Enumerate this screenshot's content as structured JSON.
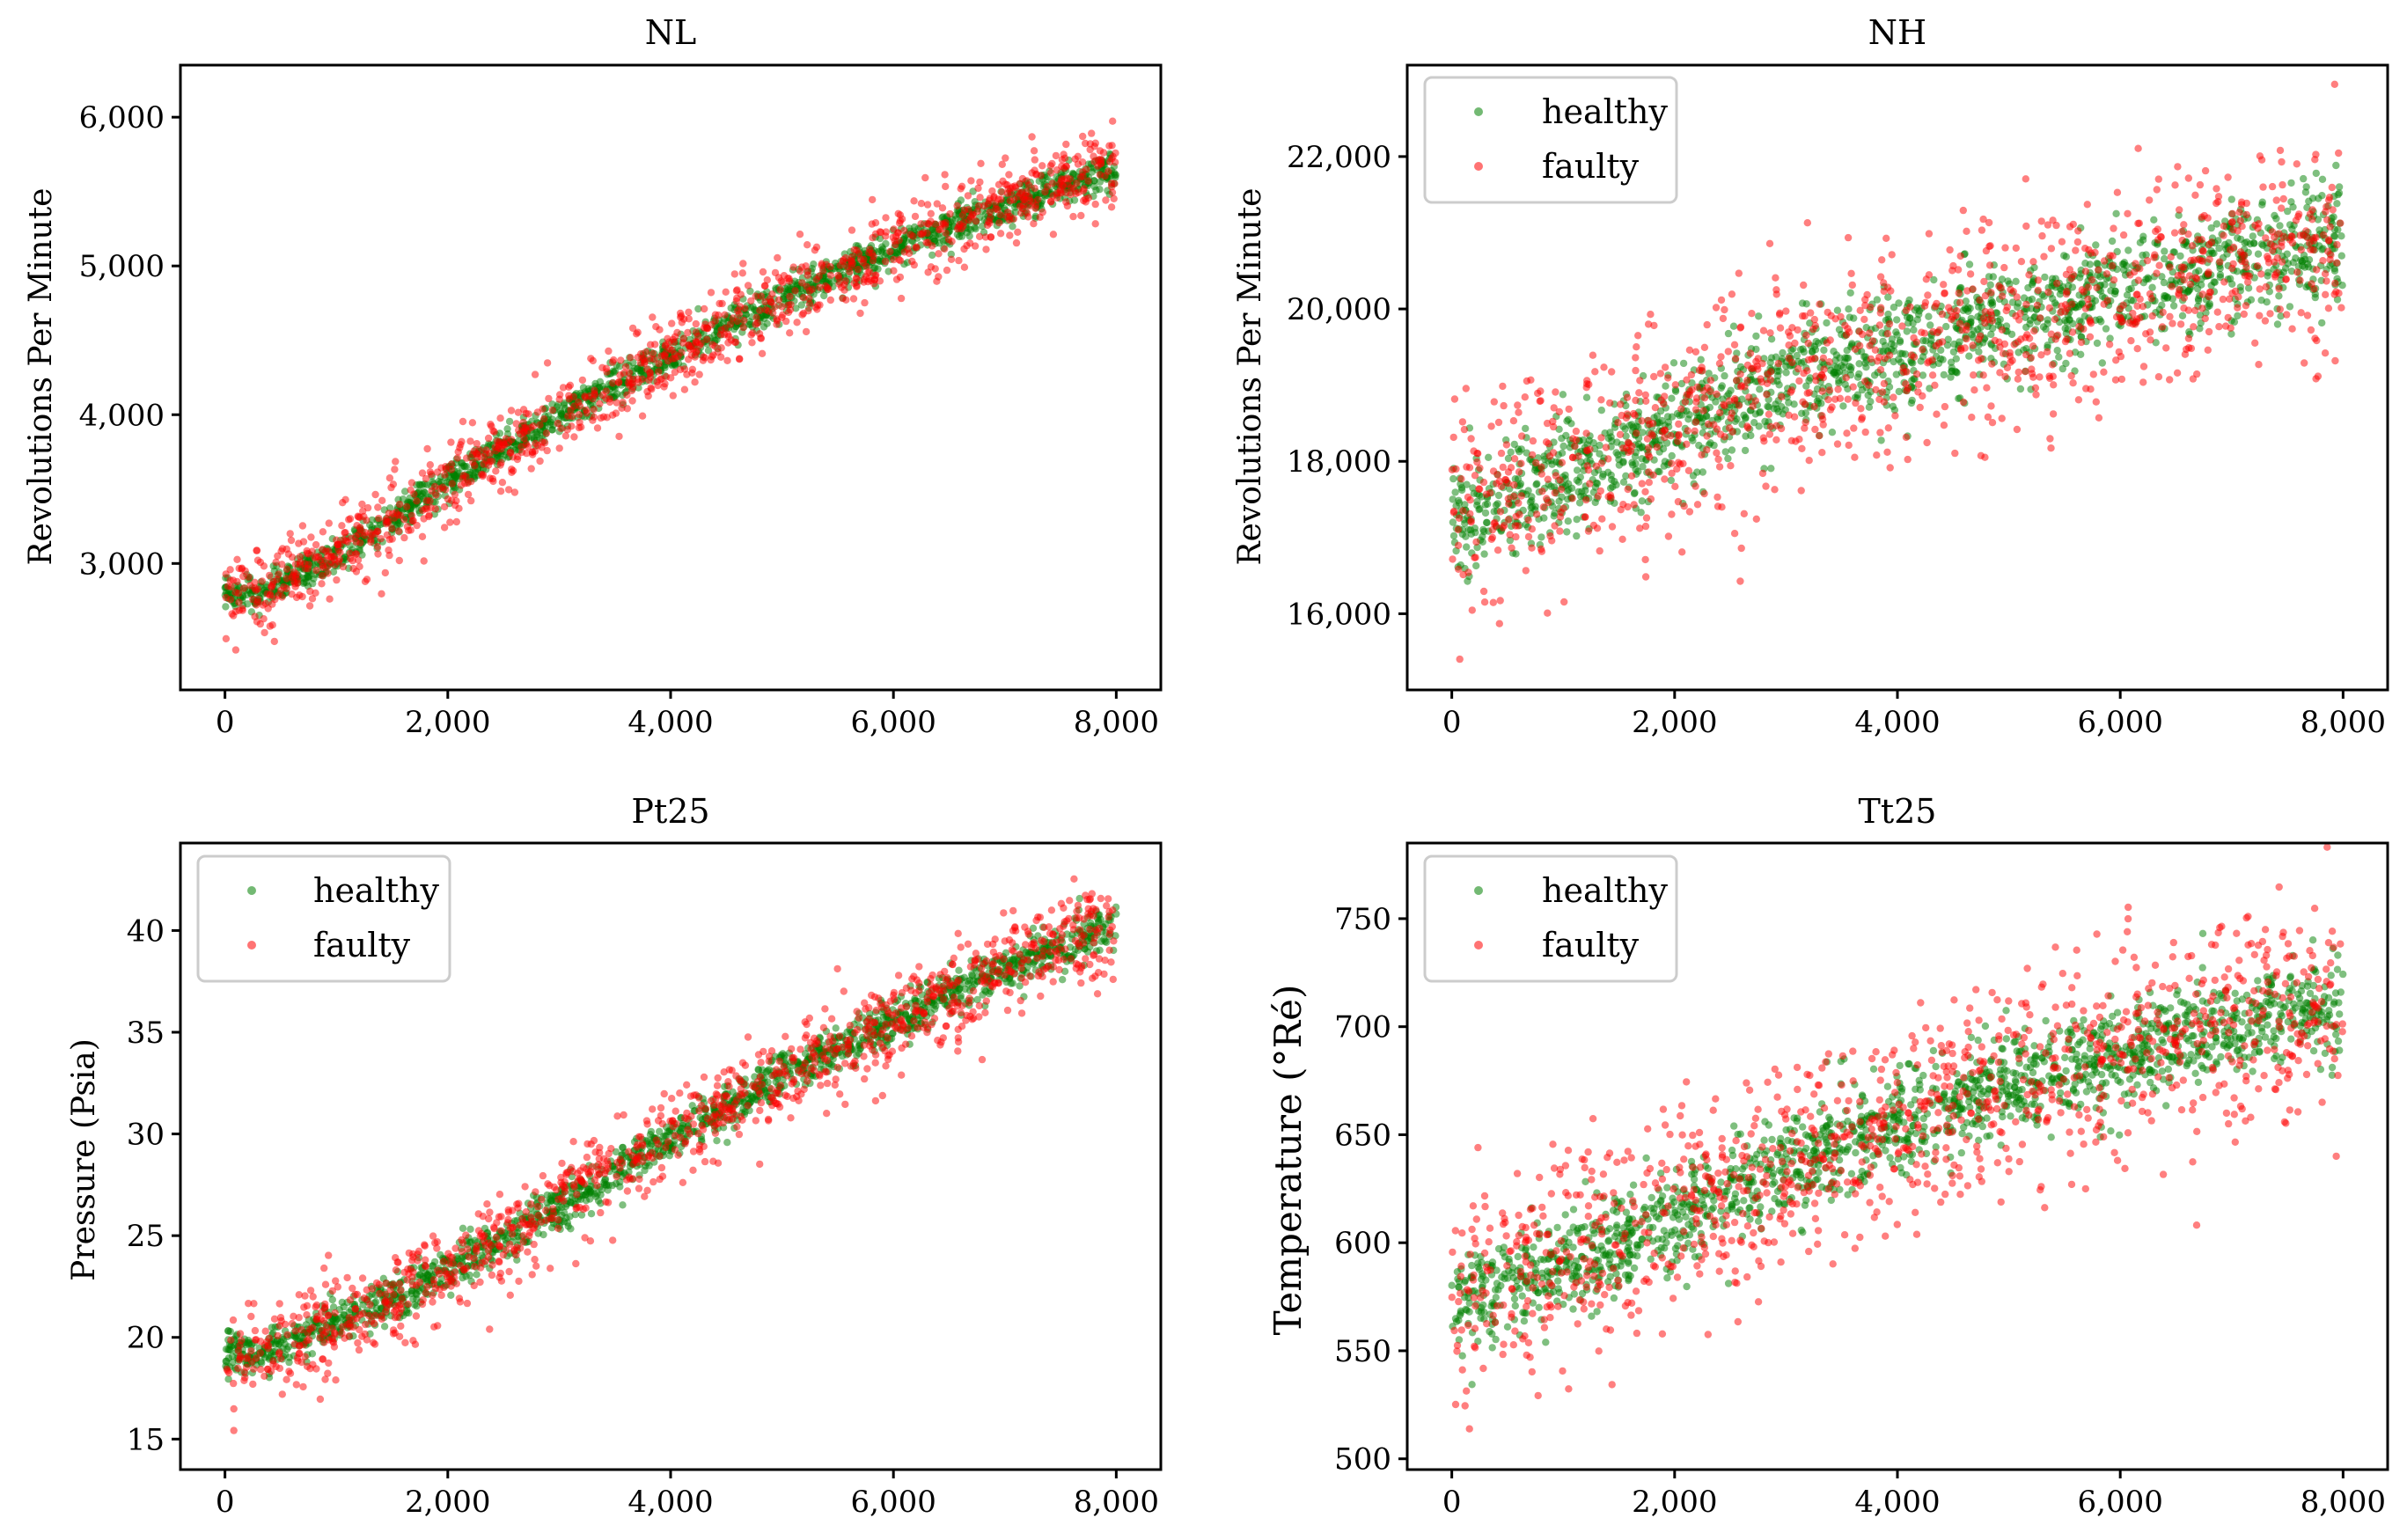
{
  "colors": {
    "healthy": "#008000",
    "faulty": "#ff0000",
    "axis": "#000000",
    "legend_border": "#cccccc"
  },
  "chart_data": [
    {
      "type": "scatter",
      "title": "NL",
      "xlabel": "",
      "ylabel": "Revolutions Per Minute",
      "xlim": [
        -400,
        8400
      ],
      "ylim": [
        2150,
        6350
      ],
      "xticks": [
        0,
        2000,
        4000,
        6000,
        8000
      ],
      "xtick_labels": [
        "0",
        "2,000",
        "4,000",
        "6,000",
        "8,000"
      ],
      "yticks": [
        3000,
        4000,
        5000,
        6000
      ],
      "ytick_labels": [
        "3,000",
        "4,000",
        "5,000",
        "6,000"
      ],
      "legend": false,
      "legend_position": "none",
      "series": [
        {
          "name": "healthy",
          "color": "#008000",
          "trend_x": [
            0,
            300,
            1000,
            2000,
            3000,
            4000,
            5000,
            6000,
            7000,
            8000
          ],
          "trend_y": [
            2800,
            2800,
            3060,
            3550,
            4000,
            4400,
            4780,
            5120,
            5400,
            5650
          ],
          "spread_sd": 60
        },
        {
          "name": "faulty",
          "color": "#ff0000",
          "trend_x": [
            0,
            300,
            1000,
            2000,
            3000,
            4000,
            5000,
            6000,
            7000,
            8000
          ],
          "trend_y": [
            2800,
            2800,
            3060,
            3550,
            4000,
            4400,
            4780,
            5120,
            5400,
            5650
          ],
          "spread_sd": 140
        }
      ]
    },
    {
      "type": "scatter",
      "title": "NH",
      "xlabel": "",
      "ylabel": "Revolutions Per Minute",
      "xlim": [
        -400,
        8400
      ],
      "ylim": [
        15000,
        23200
      ],
      "xticks": [
        0,
        2000,
        4000,
        6000,
        8000
      ],
      "xtick_labels": [
        "0",
        "2,000",
        "4,000",
        "6,000",
        "8,000"
      ],
      "yticks": [
        16000,
        18000,
        20000,
        22000
      ],
      "ytick_labels": [
        "16,000",
        "18,000",
        "20,000",
        "22,000"
      ],
      "legend": true,
      "legend_position": "upper-left",
      "series": [
        {
          "name": "healthy",
          "color": "#008000",
          "trend_x": [
            0,
            1000,
            2000,
            3000,
            4000,
            5000,
            6000,
            7000,
            8000
          ],
          "trend_y": [
            17250,
            17750,
            18450,
            19050,
            19500,
            19900,
            20250,
            20600,
            20900
          ],
          "spread_sd": 380
        },
        {
          "name": "faulty",
          "color": "#ff0000",
          "trend_x": [
            0,
            1000,
            2000,
            3000,
            4000,
            5000,
            6000,
            7000,
            8000
          ],
          "trend_y": [
            17250,
            17750,
            18450,
            19050,
            19500,
            19900,
            20250,
            20600,
            20900
          ],
          "spread_sd": 700
        }
      ]
    },
    {
      "type": "scatter",
      "title": "Pt25",
      "xlabel": "",
      "ylabel": "Pressure (Psia)",
      "xlim": [
        -400,
        8400
      ],
      "ylim": [
        13.5,
        44.3
      ],
      "xticks": [
        0,
        2000,
        4000,
        6000,
        8000
      ],
      "xtick_labels": [
        "0",
        "2,000",
        "4,000",
        "6,000",
        "8,000"
      ],
      "yticks": [
        15,
        20,
        25,
        30,
        35,
        40
      ],
      "ytick_labels": [
        "15",
        "20",
        "25",
        "30",
        "35",
        "40"
      ],
      "legend": true,
      "legend_position": "upper-left",
      "series": [
        {
          "name": "healthy",
          "color": "#008000",
          "trend_x": [
            0,
            300,
            1000,
            2000,
            3000,
            4000,
            5000,
            6000,
            7000,
            8000
          ],
          "trend_y": [
            19.2,
            19.2,
            20.6,
            23.3,
            26.5,
            29.8,
            32.8,
            35.6,
            38.1,
            40.4
          ],
          "spread_sd": 0.55
        },
        {
          "name": "faulty",
          "color": "#ff0000",
          "trend_x": [
            0,
            300,
            1000,
            2000,
            3000,
            4000,
            5000,
            6000,
            7000,
            8000
          ],
          "trend_y": [
            19.2,
            19.2,
            20.6,
            23.3,
            26.5,
            29.8,
            32.8,
            35.6,
            38.1,
            40.4
          ],
          "spread_sd": 1.2
        }
      ]
    },
    {
      "type": "scatter",
      "title": "Tt25",
      "xlabel": "",
      "ylabel": "Temperature (°Ré)",
      "xlim": [
        -400,
        8400
      ],
      "ylim": [
        495,
        785
      ],
      "xticks": [
        0,
        2000,
        4000,
        6000,
        8000
      ],
      "xtick_labels": [
        "0",
        "2,000",
        "4,000",
        "6,000",
        "8,000"
      ],
      "yticks": [
        500,
        550,
        600,
        650,
        700,
        750
      ],
      "ytick_labels": [
        "500",
        "550",
        "600",
        "650",
        "700",
        "750"
      ],
      "legend": true,
      "legend_position": "upper-left",
      "series": [
        {
          "name": "healthy",
          "color": "#008000",
          "trend_x": [
            0,
            1000,
            2000,
            3000,
            4000,
            5000,
            6000,
            7000,
            8000
          ],
          "trend_y": [
            570,
            590,
            612,
            635,
            655,
            672,
            687,
            700,
            710
          ],
          "spread_sd": 12
        },
        {
          "name": "faulty",
          "color": "#ff0000",
          "trend_x": [
            0,
            1000,
            2000,
            3000,
            4000,
            5000,
            6000,
            7000,
            8000
          ],
          "trend_y": [
            570,
            590,
            612,
            635,
            655,
            672,
            687,
            700,
            710
          ],
          "spread_sd": 24
        }
      ]
    }
  ]
}
